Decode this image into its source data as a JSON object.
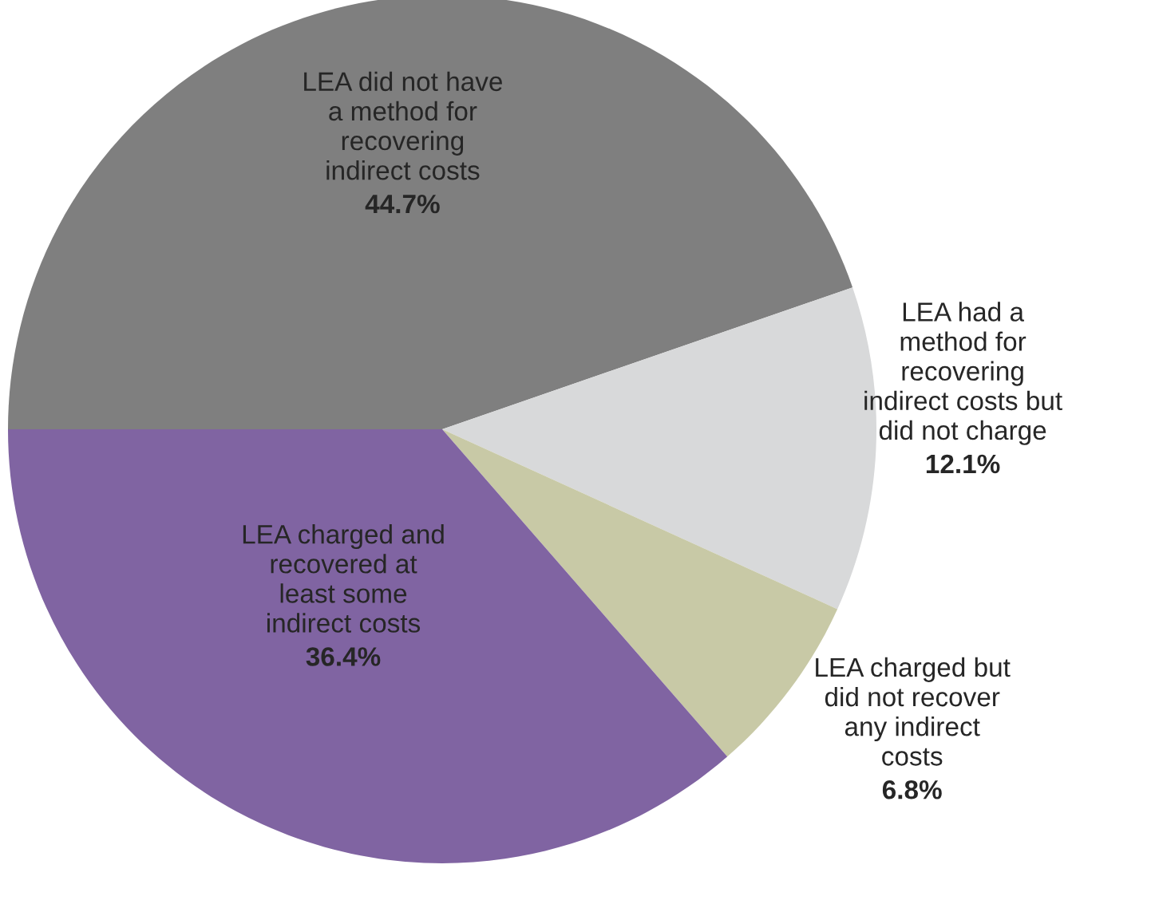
{
  "chart_data": {
    "type": "pie",
    "categories": [
      "LEA did not have\na method for\nrecovering\nindirect costs",
      "LEA had a\nmethod for\nrecovering\nindirect costs but\ndid not charge",
      "LEA charged but\ndid not recover\nany indirect\ncosts",
      "LEA charged and\nrecovered at\nleast some\nindirect costs"
    ],
    "values": [
      44.7,
      12.1,
      6.8,
      36.4
    ],
    "value_labels": [
      "44.7%",
      "12.1%",
      "6.8%",
      "36.4%"
    ],
    "colors": [
      "#7f7f7f",
      "#d8d9da",
      "#c8c9a6",
      "#8064a2"
    ],
    "legend": false
  }
}
